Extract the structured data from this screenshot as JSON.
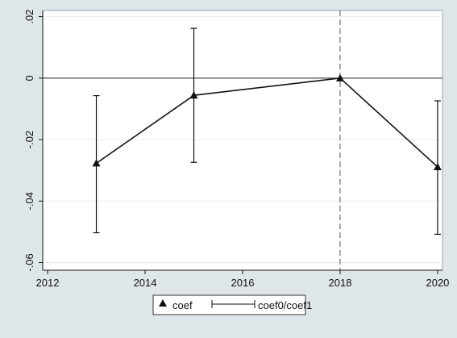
{
  "chart_data": {
    "type": "line",
    "title": "",
    "xlabel": "",
    "ylabel": "",
    "xlim": [
      2011.9,
      2020.1
    ],
    "ylim": [
      -0.0625,
      0.022
    ],
    "x_ticks": [
      2012,
      2014,
      2016,
      2018,
      2020
    ],
    "x_tick_labels": [
      "2012",
      "2014",
      "2016",
      "2018",
      "2020"
    ],
    "y_ticks": [
      0.02,
      0,
      -0.02,
      -0.04,
      -0.06
    ],
    "y_tick_labels": [
      ".02",
      "0",
      "-.02",
      "-.04",
      "-.06"
    ],
    "grid": true,
    "reference_line_y": 0,
    "reference_line_x": 2018,
    "series": [
      {
        "name": "coef",
        "x": [
          2013,
          2015,
          2018,
          2020
        ],
        "y": [
          -0.0277,
          -0.0056,
          0.0,
          -0.0289
        ],
        "marker": "triangle"
      }
    ],
    "error_bars": {
      "name": "coef0/coef1",
      "x": [
        2013,
        2015,
        2020
      ],
      "lower": [
        -0.0503,
        -0.0274,
        -0.0508
      ],
      "upper": [
        -0.0057,
        0.0162,
        -0.0074
      ]
    },
    "legend": {
      "placement": "bottom",
      "entries": [
        "coef",
        "coef0/coef1"
      ]
    },
    "colors": {
      "outer_background": "#dfe6ea",
      "plot_background": "#ffffff",
      "grid": "#e6ecef",
      "line": "#111111"
    }
  }
}
